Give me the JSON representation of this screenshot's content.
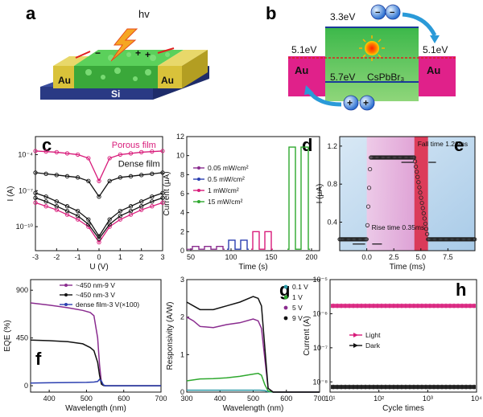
{
  "panel_labels": [
    "a",
    "b",
    "c",
    "d",
    "e",
    "f",
    "g",
    "h"
  ],
  "panel_a": {
    "light": "hv",
    "electrode_left": "Au",
    "electrode_right": "Au",
    "substrate": "Si",
    "charges": [
      "+",
      "+",
      "−"
    ]
  },
  "panel_b": {
    "cb_energy": "3.3eV",
    "vb_energy": "5.7eV",
    "wf_left": "5.1eV",
    "wf_right": "5.1eV",
    "electrode_left": "Au",
    "electrode_right": "Au",
    "material": "CsPbBr₃",
    "electrons": [
      "−",
      "−"
    ],
    "holes": [
      "+",
      "+"
    ]
  },
  "colors": {
    "pink": "#d81b7a",
    "black": "#111111",
    "blue": "#2b3fb0",
    "green": "#2ea82e",
    "purple": "#8a2c8f",
    "gold": "#d9c23a",
    "band_green": "#3ab83a"
  },
  "chart_data": [
    {
      "id": "c",
      "type": "line",
      "xlabel": "U (V)",
      "ylabel": "I (A)",
      "xlim": [
        -3,
        3
      ],
      "x_ticks": [
        "-3",
        "-2",
        "-1",
        "0",
        "1",
        "2",
        "3"
      ],
      "y_ticks": [
        "10⁻⁴",
        "10⁻⁷",
        "10⁻¹⁰"
      ],
      "annotations": [
        "Porous film",
        "Dense film"
      ],
      "series": [
        {
          "name": "Porous film",
          "color": "#d81b7a",
          "y_log": [
            -3.7,
            -3.75,
            -3.8,
            -3.9,
            -4.0,
            -4.3,
            -6.2,
            -4.3,
            -4.0,
            -3.9,
            -3.8,
            -3.75,
            -3.7
          ]
        },
        {
          "name": "Dense film",
          "color": "#111111",
          "y_log": [
            -5.5,
            -5.6,
            -5.7,
            -5.8,
            -5.9,
            -6.2,
            -7.5,
            -6.2,
            -5.9,
            -5.8,
            -5.7,
            -5.6,
            -5.5
          ]
        },
        {
          "color": "#d81b7a",
          "y_log": [
            -8.0,
            -8.3,
            -8.6,
            -9.0,
            -9.4,
            -10.0,
            -11.3,
            -10.0,
            -9.4,
            -9.0,
            -8.6,
            -8.3,
            -8.0
          ]
        },
        {
          "color": "#111111",
          "y_log": [
            -7.6,
            -7.9,
            -8.3,
            -8.7,
            -9.1,
            -9.8,
            -11.0,
            -9.8,
            -9.1,
            -8.7,
            -8.3,
            -7.9,
            -7.6
          ]
        },
        {
          "color": "#111111",
          "y_log": [
            -7.2,
            -7.5,
            -7.9,
            -8.3,
            -8.7,
            -9.4,
            -10.8,
            -9.4,
            -8.7,
            -8.3,
            -7.9,
            -7.5,
            -7.2
          ]
        }
      ],
      "x": [
        -3,
        -2.5,
        -2,
        -1.5,
        -1,
        -0.5,
        0,
        0.5,
        1,
        1.5,
        2,
        2.5,
        3
      ]
    },
    {
      "id": "d",
      "type": "line",
      "xlabel": "Time (s)",
      "ylabel": "Current (μA)",
      "xlim": [
        45,
        210
      ],
      "ylim": [
        0,
        12
      ],
      "x_ticks": [
        "50",
        "100",
        "150",
        "200"
      ],
      "y_ticks": [
        "0",
        "2",
        "4",
        "6",
        "8",
        "10",
        "12"
      ],
      "series": [
        {
          "name": "0.05 mW/cm²",
          "color": "#8a2c8f",
          "on_value": 0.45,
          "windows": [
            [
              52,
              60
            ],
            [
              67,
              75
            ],
            [
              82,
              90
            ]
          ]
        },
        {
          "name": "0.5 mW/cm²",
          "color": "#2b3fb0",
          "on_value": 1.1,
          "windows": [
            [
              97,
              105
            ],
            [
              112,
              120
            ]
          ]
        },
        {
          "name": "1 mW/cm²",
          "color": "#d81b7a",
          "on_value": 2.0,
          "windows": [
            [
              127,
              135
            ],
            [
              142,
              150
            ]
          ]
        },
        {
          "name": "15 mW/cm²",
          "color": "#2ea82e",
          "on_value": 10.9,
          "windows": [
            [
              172,
              180
            ],
            [
              187,
              196
            ]
          ]
        }
      ],
      "baseline": 0.15
    },
    {
      "id": "e",
      "type": "line",
      "xlabel": "Time (ms)",
      "ylabel": "I (μA)",
      "xlim": [
        -2.5,
        10
      ],
      "ylim": [
        0.1,
        1.3
      ],
      "x_ticks": [
        "0.0",
        "2.5",
        "5.0",
        "7.5"
      ],
      "y_ticks": [
        "0.4",
        "0.8",
        "1.2"
      ],
      "annotations": [
        "Rise time 0.35ms",
        "Fall time 1.26ms"
      ],
      "low_value": 0.22,
      "high_value": 1.08,
      "rise_at": 0.0,
      "rise_duration": 0.35,
      "fall_at": 4.4,
      "fall_duration": 1.26
    },
    {
      "id": "f",
      "type": "line",
      "xlabel": "Wavelength (nm)",
      "ylabel": "EQE (%)",
      "xlim": [
        350,
        700
      ],
      "ylim": [
        -60,
        1000
      ],
      "x_ticks": [
        "400",
        "500",
        "600",
        "700"
      ],
      "y_ticks": [
        "0",
        "450",
        "900"
      ],
      "series": [
        {
          "name": "~450 nm-9 V",
          "color": "#8a2c8f",
          "x": [
            350,
            400,
            450,
            490,
            510,
            520,
            530,
            535,
            540,
            545,
            550,
            600,
            700
          ],
          "y": [
            780,
            760,
            735,
            710,
            690,
            660,
            450,
            200,
            30,
            5,
            0,
            0,
            0
          ]
        },
        {
          "name": "~450 nm-3 V",
          "color": "#111111",
          "x": [
            350,
            400,
            450,
            490,
            510,
            520,
            530,
            535,
            540,
            545,
            550,
            600,
            700
          ],
          "y": [
            430,
            425,
            415,
            395,
            360,
            330,
            220,
            100,
            15,
            3,
            0,
            0,
            0
          ]
        },
        {
          "name": "dense film-3 V(×100)",
          "color": "#2b3fb0",
          "x": [
            350,
            400,
            450,
            500,
            520,
            530,
            535,
            540,
            545,
            550,
            600,
            700
          ],
          "y": [
            25,
            28,
            30,
            32,
            35,
            40,
            60,
            45,
            10,
            0,
            0,
            0
          ]
        }
      ]
    },
    {
      "id": "g",
      "type": "line",
      "xlabel": "Wavelength (nm)",
      "ylabel": "Responsivity (A/W)",
      "xlim": [
        300,
        700
      ],
      "ylim": [
        0,
        3
      ],
      "x_ticks": [
        "300",
        "400",
        "500",
        "600",
        "700"
      ],
      "y_ticks": [
        "0",
        "1",
        "2",
        "3"
      ],
      "series": [
        {
          "name": "0.1 V",
          "color": "#2e9aa8",
          "x": [
            300,
            400,
            500,
            520,
            535,
            545,
            560,
            700
          ],
          "y": [
            0.05,
            0.05,
            0.05,
            0.05,
            0.04,
            0.01,
            0,
            0
          ]
        },
        {
          "name": "1 V",
          "color": "#2ea82e",
          "x": [
            300,
            340,
            380,
            420,
            460,
            500,
            515,
            525,
            535,
            545,
            560,
            700
          ],
          "y": [
            0.3,
            0.35,
            0.36,
            0.38,
            0.42,
            0.48,
            0.5,
            0.45,
            0.2,
            0.03,
            0,
            0
          ]
        },
        {
          "name": "5 V",
          "color": "#8a2c8f",
          "x": [
            300,
            320,
            340,
            380,
            420,
            460,
            500,
            515,
            525,
            535,
            545,
            560,
            700
          ],
          "y": [
            2.0,
            1.9,
            1.75,
            1.72,
            1.8,
            1.85,
            1.95,
            1.9,
            1.7,
            0.9,
            0.1,
            0,
            0
          ]
        },
        {
          "name": "9 V",
          "color": "#111111",
          "x": [
            300,
            320,
            340,
            380,
            420,
            460,
            500,
            515,
            525,
            535,
            545,
            560,
            700
          ],
          "y": [
            2.4,
            2.3,
            2.2,
            2.2,
            2.3,
            2.4,
            2.55,
            2.5,
            2.3,
            1.2,
            0.1,
            0,
            0
          ]
        }
      ]
    },
    {
      "id": "h",
      "type": "line",
      "xlabel": "Cycle times",
      "ylabel": "Current (A)",
      "x_log_range": [
        1,
        4
      ],
      "y_log_range": [
        -8.3,
        -5
      ],
      "x_ticks": [
        "10¹",
        "10²",
        "10³",
        "10⁴"
      ],
      "y_ticks": [
        "10⁻⁵",
        "10⁻⁶",
        "10⁻⁷",
        "10⁻⁸"
      ],
      "legend_position": "left",
      "series": [
        {
          "name": "Light",
          "color": "#d81b7a",
          "y_log": -5.77
        },
        {
          "name": "Dark",
          "color": "#111111",
          "y_log": -8.15
        }
      ]
    }
  ]
}
